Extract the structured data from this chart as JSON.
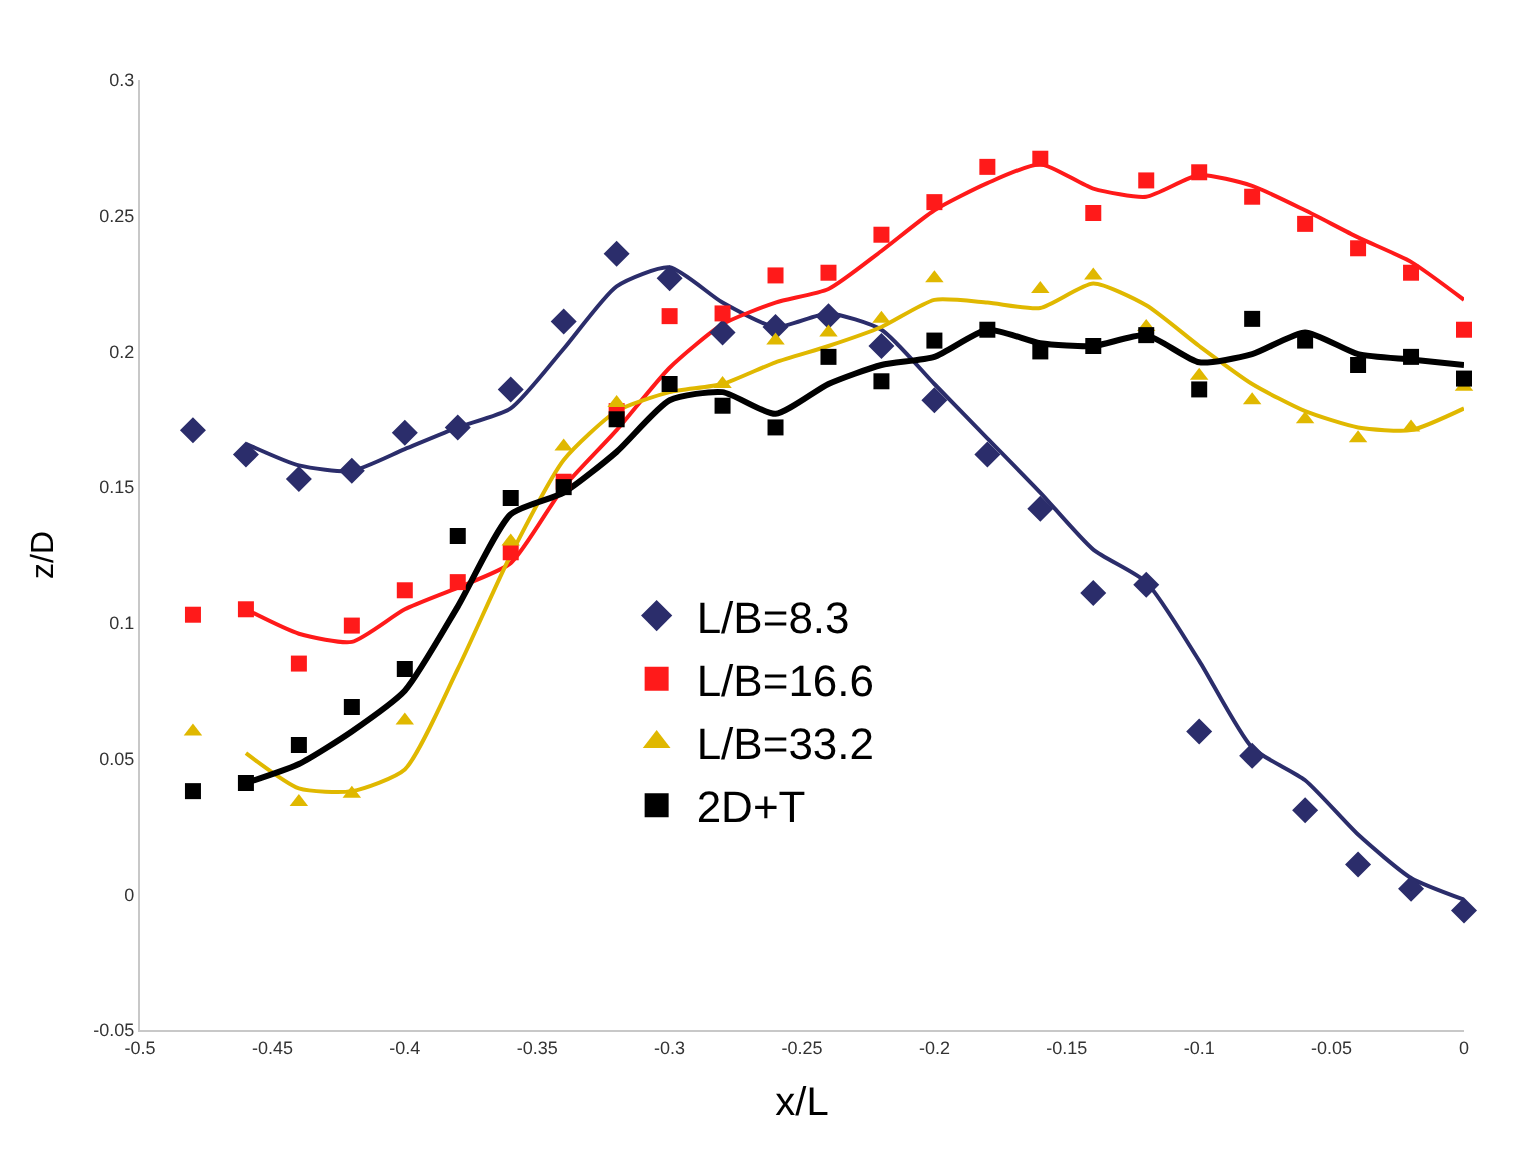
{
  "chart_data": {
    "type": "scatter",
    "xlabel": "x/L",
    "ylabel": "z/D",
    "xlim": [
      -0.5,
      0
    ],
    "ylim": [
      -0.05,
      0.3
    ],
    "xticks": [
      -0.5,
      -0.45,
      -0.4,
      -0.35,
      -0.3,
      -0.25,
      -0.2,
      -0.15,
      -0.1,
      -0.05,
      0
    ],
    "yticks": [
      -0.05,
      0,
      0.05,
      0.1,
      0.15,
      0.2,
      0.25,
      0.3
    ],
    "grid": false,
    "legend": "left",
    "series": [
      {
        "name": "L/B=8.3",
        "marker": "diamond",
        "color": "#2b2d6b",
        "x": [
          -0.48,
          -0.46,
          -0.44,
          -0.42,
          -0.4,
          -0.38,
          -0.36,
          -0.34,
          -0.32,
          -0.3,
          -0.28,
          -0.26,
          -0.24,
          -0.22,
          -0.2,
          -0.18,
          -0.16,
          -0.14,
          -0.12,
          -0.1,
          -0.08,
          -0.06,
          -0.04,
          -0.02,
          0
        ],
        "values": [
          0.171,
          0.162,
          0.153,
          0.156,
          0.17,
          0.172,
          0.186,
          0.211,
          0.236,
          0.227,
          0.207,
          0.209,
          0.213,
          0.202,
          0.182,
          0.162,
          0.142,
          0.111,
          0.114,
          0.06,
          0.051,
          0.031,
          0.011,
          0.002,
          -0.006
        ]
      },
      {
        "name": "L/B=16.6",
        "marker": "square",
        "color": "#ff1a1a",
        "x": [
          -0.48,
          -0.46,
          -0.44,
          -0.42,
          -0.4,
          -0.38,
          -0.36,
          -0.34,
          -0.32,
          -0.3,
          -0.28,
          -0.26,
          -0.24,
          -0.22,
          -0.2,
          -0.18,
          -0.16,
          -0.14,
          -0.12,
          -0.1,
          -0.08,
          -0.06,
          -0.04,
          -0.02,
          0
        ],
        "values": [
          0.103,
          0.105,
          0.085,
          0.099,
          0.112,
          0.115,
          0.126,
          0.152,
          0.178,
          0.213,
          0.214,
          0.228,
          0.229,
          0.243,
          0.255,
          0.268,
          0.271,
          0.251,
          0.263,
          0.266,
          0.257,
          0.247,
          0.238,
          0.229,
          0.208
        ]
      },
      {
        "name": "L/B=33.2",
        "marker": "triangle",
        "color": "#e0b800",
        "x": [
          -0.48,
          -0.46,
          -0.44,
          -0.42,
          -0.4,
          -0.38,
          -0.36,
          -0.34,
          -0.32,
          -0.3,
          -0.28,
          -0.26,
          -0.24,
          -0.22,
          -0.2,
          -0.18,
          -0.16,
          -0.14,
          -0.12,
          -0.1,
          -0.08,
          -0.06,
          -0.04,
          -0.02,
          0
        ],
        "values": [
          0.06,
          null,
          0.034,
          0.037,
          0.064,
          null,
          0.13,
          0.165,
          0.181,
          null,
          0.188,
          0.204,
          0.207,
          0.212,
          0.227,
          null,
          0.223,
          0.228,
          0.209,
          0.191,
          0.182,
          0.175,
          0.168,
          0.172,
          0.187
        ]
      },
      {
        "name": "2D+T",
        "marker": "square",
        "color": "#000000",
        "x": [
          -0.48,
          -0.46,
          -0.44,
          -0.42,
          -0.4,
          -0.38,
          -0.36,
          -0.34,
          -0.32,
          -0.3,
          -0.28,
          -0.26,
          -0.24,
          -0.22,
          -0.2,
          -0.18,
          -0.16,
          -0.14,
          -0.12,
          -0.1,
          -0.08,
          -0.06,
          -0.04,
          -0.02,
          0
        ],
        "values": [
          0.038,
          0.041,
          0.055,
          0.069,
          0.083,
          0.132,
          0.146,
          0.15,
          0.175,
          0.188,
          0.18,
          0.172,
          0.198,
          0.189,
          0.204,
          0.208,
          0.2,
          0.202,
          0.206,
          0.186,
          0.212,
          0.204,
          0.195,
          0.198,
          0.19
        ]
      },
      {
        "type": "line",
        "marker": "none",
        "color": "#2b2d6b",
        "x": [
          -0.46,
          -0.44,
          -0.42,
          -0.4,
          -0.38,
          -0.36,
          -0.34,
          -0.32,
          -0.3,
          -0.28,
          -0.26,
          -0.24,
          -0.22,
          -0.2,
          -0.18,
          -0.16,
          -0.14,
          -0.12,
          -0.1,
          -0.08,
          -0.06,
          -0.04,
          -0.02,
          0
        ],
        "values": [
          0.166,
          0.158,
          0.156,
          0.164,
          0.172,
          0.179,
          0.201,
          0.224,
          0.231,
          0.218,
          0.209,
          0.214,
          0.208,
          0.188,
          0.168,
          0.148,
          0.127,
          0.115,
          0.086,
          0.054,
          0.042,
          0.022,
          0.006,
          -0.002
        ]
      },
      {
        "type": "line",
        "marker": "none",
        "color": "#ff1a1a",
        "x": [
          -0.46,
          -0.44,
          -0.42,
          -0.4,
          -0.38,
          -0.36,
          -0.34,
          -0.32,
          -0.3,
          -0.28,
          -0.26,
          -0.24,
          -0.22,
          -0.2,
          -0.18,
          -0.16,
          -0.14,
          -0.12,
          -0.1,
          -0.08,
          -0.06,
          -0.04,
          -0.02,
          0
        ],
        "values": [
          0.105,
          0.096,
          0.093,
          0.105,
          0.113,
          0.122,
          0.15,
          0.171,
          0.194,
          0.21,
          0.218,
          0.223,
          0.237,
          0.252,
          0.262,
          0.269,
          0.26,
          0.257,
          0.265,
          0.261,
          0.252,
          0.242,
          0.233,
          0.219
        ]
      },
      {
        "type": "line",
        "marker": "none",
        "color": "#e0b800",
        "x": [
          -0.46,
          -0.44,
          -0.42,
          -0.4,
          -0.38,
          -0.36,
          -0.34,
          -0.32,
          -0.3,
          -0.28,
          -0.26,
          -0.24,
          -0.22,
          -0.2,
          -0.18,
          -0.16,
          -0.14,
          -0.12,
          -0.1,
          -0.08,
          -0.06,
          -0.04,
          -0.02,
          0
        ],
        "values": [
          0.052,
          0.039,
          0.038,
          0.046,
          0.083,
          0.125,
          0.16,
          0.178,
          0.185,
          0.188,
          0.196,
          0.202,
          0.209,
          0.219,
          0.218,
          0.216,
          0.225,
          0.217,
          0.202,
          0.188,
          0.178,
          0.172,
          0.171,
          0.179
        ]
      },
      {
        "type": "line",
        "marker": "none",
        "color": "#000000",
        "x": [
          -0.46,
          -0.44,
          -0.42,
          -0.4,
          -0.38,
          -0.36,
          -0.34,
          -0.32,
          -0.3,
          -0.28,
          -0.26,
          -0.24,
          -0.22,
          -0.2,
          -0.18,
          -0.16,
          -0.14,
          -0.12,
          -0.1,
          -0.08,
          -0.06,
          -0.04,
          -0.02,
          0
        ],
        "values": [
          0.041,
          0.048,
          0.06,
          0.075,
          0.106,
          0.14,
          0.148,
          0.163,
          0.182,
          0.185,
          0.177,
          0.188,
          0.195,
          0.198,
          0.208,
          0.203,
          0.202,
          0.206,
          0.196,
          0.199,
          0.207,
          0.199,
          0.197,
          0.195
        ]
      }
    ]
  }
}
